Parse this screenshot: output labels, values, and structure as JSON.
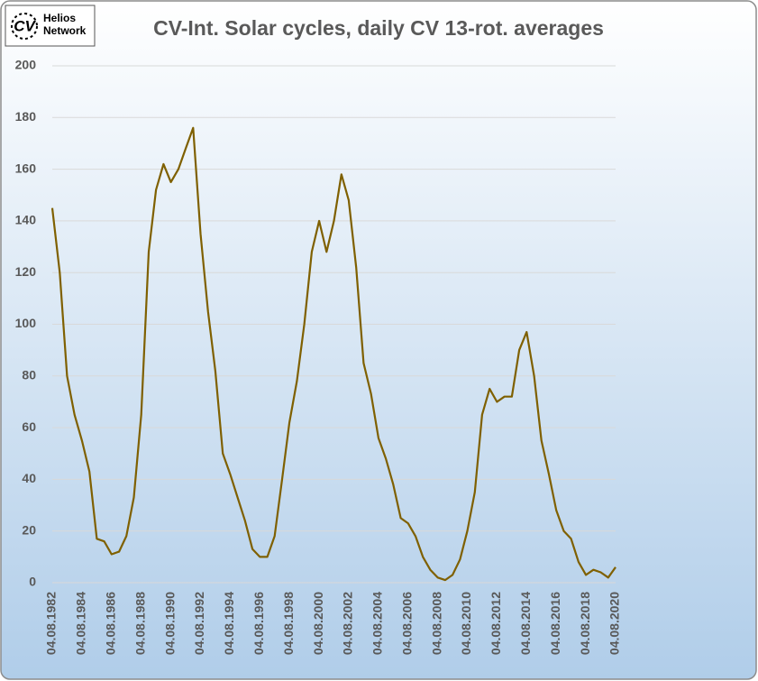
{
  "logo": {
    "mark": "CV",
    "line1": "Helios",
    "line2": "Network"
  },
  "chart_data": {
    "type": "line",
    "title": "CV-Int. Solar cycles, daily CV 13-rot. averages",
    "x": [
      "04.08.1982",
      "04.02.1983",
      "04.08.1983",
      "04.02.1984",
      "04.08.1984",
      "04.02.1985",
      "04.08.1985",
      "04.02.1986",
      "04.08.1986",
      "04.02.1987",
      "04.08.1987",
      "04.02.1988",
      "04.08.1988",
      "04.02.1989",
      "04.08.1989",
      "04.02.1990",
      "04.08.1990",
      "04.02.1991",
      "04.08.1991",
      "04.02.1992",
      "04.08.1992",
      "04.02.1993",
      "04.08.1993",
      "04.02.1994",
      "04.08.1994",
      "04.02.1995",
      "04.08.1995",
      "04.02.1996",
      "04.08.1996",
      "04.02.1997",
      "04.08.1997",
      "04.02.1998",
      "04.08.1998",
      "04.02.1999",
      "04.08.1999",
      "04.02.2000",
      "04.08.2000",
      "04.02.2001",
      "04.08.2001",
      "04.02.2002",
      "04.08.2002",
      "04.02.2003",
      "04.08.2003",
      "04.02.2004",
      "04.08.2004",
      "04.02.2005",
      "04.08.2005",
      "04.02.2006",
      "04.08.2006",
      "04.02.2007",
      "04.08.2007",
      "04.02.2008",
      "04.08.2008",
      "04.02.2009",
      "04.08.2009",
      "04.02.2010",
      "04.08.2010",
      "04.02.2011",
      "04.08.2011",
      "04.02.2012",
      "04.08.2012",
      "04.02.2013",
      "04.08.2013",
      "04.02.2014",
      "04.08.2014",
      "04.02.2015",
      "04.08.2015",
      "04.02.2016",
      "04.08.2016",
      "04.02.2017",
      "04.08.2017",
      "04.02.2018",
      "04.08.2018",
      "04.02.2019",
      "04.08.2019",
      "04.02.2020",
      "04.08.2020"
    ],
    "series": [
      {
        "color": "#7f6000",
        "values": [
          145,
          120,
          80,
          65,
          55,
          43,
          17,
          16,
          11,
          12,
          18,
          33,
          65,
          128,
          152,
          162,
          155,
          160,
          168,
          176,
          135,
          105,
          82,
          50,
          42,
          33,
          24,
          13,
          10,
          10,
          18,
          40,
          62,
          78,
          100,
          128,
          140,
          128,
          140,
          158,
          148,
          122,
          85,
          73,
          56,
          48,
          38,
          25,
          23,
          18,
          10,
          5,
          2,
          1,
          3,
          9,
          20,
          35,
          65,
          75,
          70,
          72,
          72,
          90,
          97,
          80,
          55,
          42,
          28,
          20,
          17,
          8,
          3,
          5,
          4,
          2,
          6
        ]
      }
    ],
    "xlim": [
      "04.08.1982",
      "04.08.2020"
    ],
    "xticks": [
      "04.08.1982",
      "04.08.1984",
      "04.08.1986",
      "04.08.1988",
      "04.08.1990",
      "04.08.1992",
      "04.08.1994",
      "04.08.1996",
      "04.08.1998",
      "04.08.2000",
      "04.08.2002",
      "04.08.2004",
      "04.08.2006",
      "04.08.2008",
      "04.08.2010",
      "04.08.2012",
      "04.08.2014",
      "04.08.2016",
      "04.08.2018",
      "04.08.2020"
    ],
    "ylim": [
      0,
      200
    ],
    "yticks": [
      0,
      20,
      40,
      60,
      80,
      100,
      120,
      140,
      160,
      180,
      200
    ],
    "grid": true
  }
}
